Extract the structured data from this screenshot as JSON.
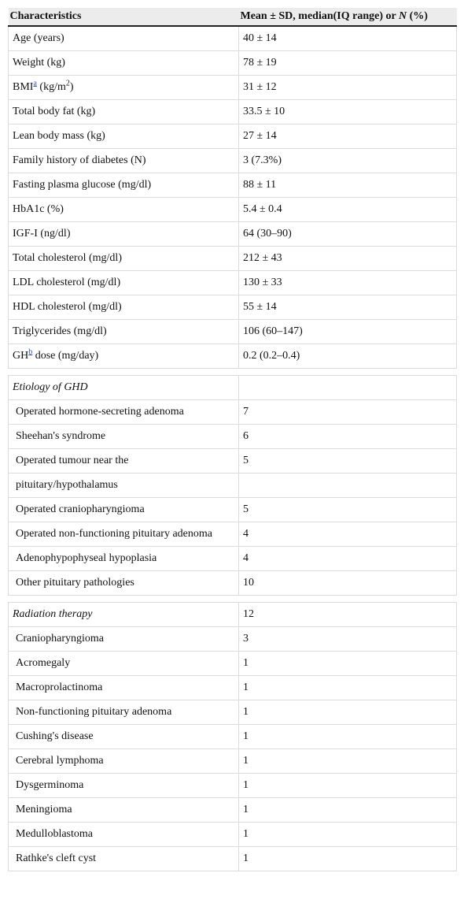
{
  "table": {
    "header": [
      "Characteristics",
      {
        "text": "Mean ± SD, median(IQ range) or ",
        "italic": "N",
        "rest": " (%)"
      }
    ],
    "sections": [
      {
        "rows": [
          [
            "Age (years)",
            "40 ± 14"
          ],
          [
            "Weight (kg)",
            "78 ± 19"
          ],
          [
            {
              "text": "BMI",
              "note": "a",
              "rest": " (kg/m",
              "sup": "2",
              "end": ")"
            },
            "31 ± 12"
          ],
          [
            "Total body fat (kg)",
            "33.5 ± 10"
          ],
          [
            "Lean body mass (kg)",
            "27 ± 14"
          ],
          [
            "Family history of diabetes (N)",
            "3 (7.3%)"
          ],
          [
            "Fasting plasma glucose (mg/dl)",
            "88 ± 11"
          ],
          [
            "HbA1c (%)",
            "5.4 ± 0.4"
          ],
          [
            "IGF-I (ng/dl)",
            "64 (30–90)"
          ],
          [
            "Total cholesterol (mg/dl)",
            "212 ± 43"
          ],
          [
            "LDL cholesterol (mg/dl)",
            "130 ± 33"
          ],
          [
            "HDL cholesterol (mg/dl)",
            "55 ± 14"
          ],
          [
            "Triglycerides (mg/dl)",
            "106 (60–147)"
          ],
          [
            {
              "text": "GH",
              "note": "b",
              "rest": " dose (mg/day)"
            },
            "0.2 (0.2–0.4)"
          ]
        ]
      },
      {
        "title": "Etiology of GHD",
        "value": null,
        "rows": [
          [
            "Operated hormone-secreting adenoma",
            "7"
          ],
          [
            "Sheehan's syndrome",
            "6"
          ],
          [
            "Operated tumour near the",
            "5"
          ],
          [
            "pituitary/hypothalamus",
            null
          ],
          [
            "Operated craniopharyngioma",
            "5"
          ],
          [
            "Operated non-functioning pituitary adenoma",
            "4"
          ],
          [
            "Adenophypophyseal hypoplasia",
            "4"
          ],
          [
            "Other pituitary pathologies",
            "10"
          ]
        ]
      },
      {
        "title": "Radiation therapy",
        "value": "12",
        "rows": [
          [
            "Craniopharyngioma",
            "3"
          ],
          [
            "Acromegaly",
            "1"
          ],
          [
            "Macroprolactinoma",
            "1"
          ],
          [
            "Non-functioning pituitary adenoma",
            "1"
          ],
          [
            "Cushing's disease",
            "1"
          ],
          [
            "Cerebral lymphoma",
            "1"
          ],
          [
            "Dysgerminoma",
            "1"
          ],
          [
            "Meningioma",
            "1"
          ],
          [
            "Medulloblastoma",
            "1"
          ],
          [
            "Rathke's cleft cyst",
            "1"
          ]
        ]
      }
    ]
  }
}
